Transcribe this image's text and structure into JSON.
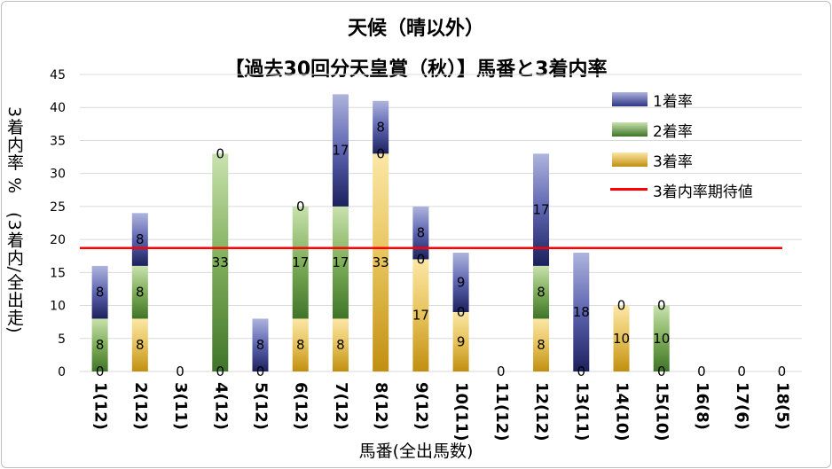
{
  "chart_data": {
    "type": "bar",
    "stacked": true,
    "title_line1": "天候（晴以外）",
    "title_line2": "【過去30回分天皇賞（秋）】馬番と3着内率",
    "xlabel": "馬番(全出馬数)",
    "ylabel": "3着内率 %　(3着内/全出走)",
    "ylim": [
      0,
      45
    ],
    "yticks": [
      0,
      5,
      10,
      15,
      20,
      25,
      30,
      35,
      40,
      45
    ],
    "categories": [
      "1(12)",
      "2(12)",
      "3(11)",
      "4(12)",
      "5(12)",
      "6(12)",
      "7(12)",
      "8(12)",
      "9(12)",
      "10(11)",
      "11(12)",
      "12(12)",
      "13(11)",
      "14(10)",
      "15(10)",
      "16(8)",
      "17(6)",
      "18(5)"
    ],
    "series": [
      {
        "name": "3着率",
        "color": "#c9a227",
        "values": [
          0,
          8,
          0,
          0,
          0,
          8,
          8,
          33,
          17,
          9,
          0,
          8,
          0,
          10,
          0,
          0,
          0,
          0
        ],
        "labels": [
          "0",
          "8",
          "0",
          "0",
          "0",
          "8",
          "8",
          "33",
          "17",
          "9",
          "0",
          "8",
          "0",
          "10",
          "0",
          "0",
          "0",
          "0"
        ]
      },
      {
        "name": "2着率",
        "color": "#5a8a3c",
        "values": [
          8,
          8,
          0,
          33,
          0,
          17,
          17,
          0,
          0,
          0,
          0,
          8,
          0,
          0,
          10,
          0,
          0,
          0
        ],
        "labels": [
          "8",
          "8",
          "",
          "33",
          "",
          "17",
          "17",
          "0",
          "0",
          "0",
          "",
          "8",
          "",
          "",
          "10",
          "",
          "",
          ""
        ]
      },
      {
        "name": "1着率",
        "color": "#2e3585",
        "values": [
          8,
          8,
          0,
          0,
          8,
          0,
          17,
          8,
          8,
          9,
          0,
          17,
          18,
          0,
          0,
          0,
          0,
          0
        ],
        "labels": [
          "8",
          "8",
          "",
          "0",
          "8",
          "0",
          "17",
          "8",
          "8",
          "9",
          "",
          "17",
          "18",
          "0",
          "0",
          "",
          "",
          ""
        ]
      }
    ],
    "expected_line": {
      "name": "3着内率期待値",
      "color": "#ff0000",
      "value": 18.7
    },
    "legend_position": "top-right"
  }
}
